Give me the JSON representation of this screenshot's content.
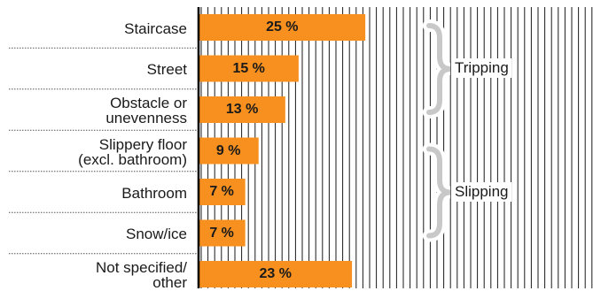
{
  "chart_data": {
    "type": "bar",
    "orientation": "horizontal",
    "categories": [
      "Staircase",
      "Street",
      "Obstacle or unevenness",
      "Slippery floor (excl. bathroom)",
      "Bathroom",
      "Snow/ice",
      "Not specified/ other"
    ],
    "category_lines": [
      [
        "Staircase"
      ],
      [
        "Street"
      ],
      [
        "Obstacle or",
        "unevenness"
      ],
      [
        "Slippery floor",
        "(excl. bathroom)"
      ],
      [
        "Bathroom"
      ],
      [
        "Snow/ice"
      ],
      [
        "Not specified/",
        "other"
      ]
    ],
    "values": [
      25,
      15,
      13,
      9,
      7,
      7,
      23
    ],
    "value_labels": [
      "25 %",
      "15 %",
      "13 %",
      "9 %",
      "7 %",
      "7 %",
      "23 %"
    ],
    "groups": [
      {
        "label": "Tripping",
        "categories": [
          "Staircase",
          "Street",
          "Obstacle or unevenness"
        ]
      },
      {
        "label": "Slipping",
        "categories": [
          "Slippery floor (excl. bathroom)",
          "Bathroom",
          "Snow/ice"
        ]
      }
    ],
    "xlim": [
      0,
      59
    ],
    "grid": true,
    "colors": {
      "bar": "#F7901E",
      "grid": "#1a1a1a",
      "brace": "#c8c8c8",
      "separator": "#555555",
      "axis": "#000000"
    }
  }
}
